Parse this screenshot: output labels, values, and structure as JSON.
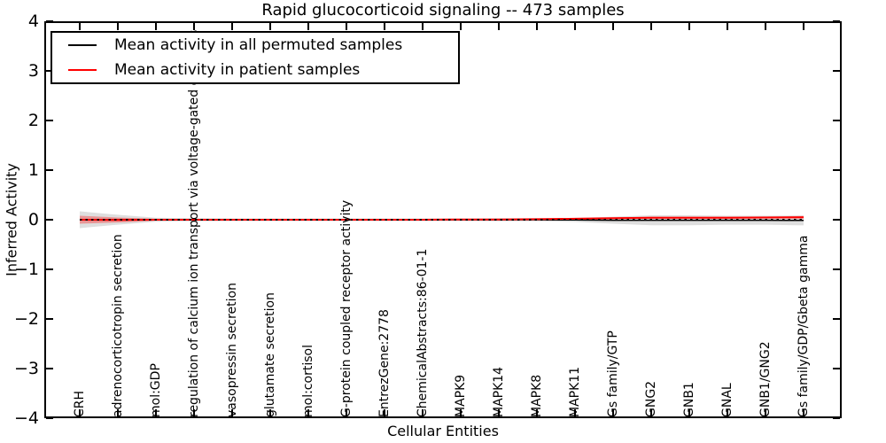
{
  "title": "Rapid glucocorticoid signaling -- 473 samples",
  "axes": {
    "ylabel": "Inferred Activity",
    "xlabel": "Cellular Entities",
    "yticks": [
      4,
      3,
      2,
      1,
      0,
      -1,
      -2,
      -3,
      -4
    ],
    "ylim": [
      -4,
      4
    ]
  },
  "legend": {
    "position": "upper left",
    "items": [
      {
        "label": "Mean activity in all permuted samples",
        "color": "#000000"
      },
      {
        "label": "Mean activity in patient samples",
        "color": "#ff0000"
      }
    ]
  },
  "colors": {
    "permuted_line": "#000000",
    "patient_line": "#ff0000",
    "permuted_band": "#000000",
    "patient_band": "#ff0000",
    "zero_line": "#000000"
  },
  "chart_data": {
    "type": "line",
    "title": "Rapid glucocorticoid signaling -- 473 samples",
    "xlabel": "Cellular Entities",
    "ylabel": "Inferred Activity",
    "ylim": [
      -4,
      4
    ],
    "grid": false,
    "legend_position": "upper left",
    "categories": [
      "CRH",
      "adrenocorticotropin secretion",
      "mol:GDP",
      "regulation of calcium ion transport via voltage-gated channels",
      "vasopressin secretion",
      "glutamate secretion",
      "mol:cortisol",
      "G-protein coupled receptor activity",
      "EntrezGene:2778",
      "ChemicalAbstracts:86-01-1",
      "MAPK9",
      "MAPK14",
      "MAPK8",
      "MAPK11",
      "Gs family/GTP",
      "GNG2",
      "GNB1",
      "GNAL",
      "GNB1/GNG2",
      "Gs family/GDP/Gbeta gamma"
    ],
    "series": [
      {
        "name": "Mean activity in all permuted samples",
        "color": "#000000",
        "width": 1.5,
        "values": [
          0,
          0,
          0,
          0,
          0,
          0,
          0,
          0,
          0,
          0,
          0,
          0,
          0,
          -0.005,
          -0.01,
          -0.01,
          -0.01,
          -0.01,
          -0.01,
          -0.015
        ]
      },
      {
        "name": "Mean activity in patient samples",
        "color": "#ff0000",
        "width": 2,
        "values": [
          0,
          -0.005,
          0,
          0,
          0,
          0,
          0,
          0,
          0,
          0,
          0.005,
          0.005,
          0.01,
          0.02,
          0.03,
          0.04,
          0.04,
          0.04,
          0.045,
          0.05
        ]
      }
    ],
    "bands": [
      {
        "series_index": 0,
        "color": "#000000",
        "opacity": 0.13,
        "half_width": [
          0.17,
          0.1,
          0.04,
          0.03,
          0.025,
          0.025,
          0.025,
          0.025,
          0.025,
          0.025,
          0.025,
          0.03,
          0.03,
          0.04,
          0.07,
          0.1,
          0.1,
          0.09,
          0.09,
          0.1
        ]
      },
      {
        "series_index": 1,
        "color": "#ff0000",
        "opacity": 0.32,
        "half_width": [
          0.08,
          0.05,
          0.02,
          0.015,
          0.01,
          0.01,
          0.01,
          0.01,
          0.01,
          0.01,
          0.01,
          0.01,
          0.01,
          0.012,
          0.015,
          0.02,
          0.02,
          0.02,
          0.02,
          0.025
        ]
      }
    ],
    "zero_line": {
      "y": 0,
      "style": "dotted",
      "color": "#000000"
    }
  }
}
